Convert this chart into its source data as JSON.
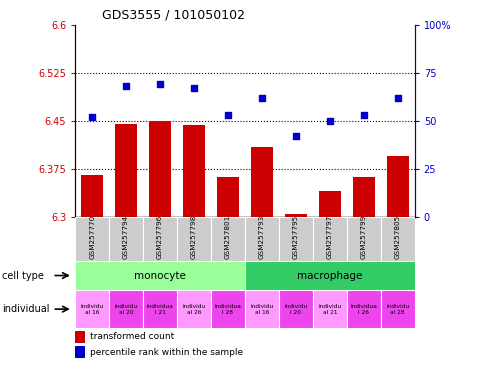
{
  "title": "GDS3555 / 101050102",
  "samples": [
    "GSM257770",
    "GSM257794",
    "GSM257796",
    "GSM257798",
    "GSM257801",
    "GSM257793",
    "GSM257795",
    "GSM257797",
    "GSM257799",
    "GSM257805"
  ],
  "bar_values": [
    6.365,
    6.445,
    6.45,
    6.443,
    6.362,
    6.41,
    6.305,
    6.34,
    6.362,
    6.395
  ],
  "scatter_values": [
    52,
    68,
    69,
    67,
    53,
    62,
    42,
    50,
    53,
    62
  ],
  "ymin": 6.3,
  "ymax": 6.6,
  "yticks": [
    6.3,
    6.375,
    6.45,
    6.525,
    6.6
  ],
  "y2min": 0,
  "y2max": 100,
  "y2ticks": [
    0,
    25,
    50,
    75,
    100
  ],
  "bar_color": "#cc0000",
  "scatter_color": "#0000cc",
  "bar_width": 0.65,
  "cell_type_monocyte_color": "#99ff99",
  "cell_type_macrophage_color": "#33cc66",
  "individual_colors_light": "#ff99ff",
  "individual_colors_dark": "#ee44ee",
  "legend_bar_label": "transformed count",
  "legend_scatter_label": "percentile rank within the sample",
  "left_color": "#cc0000",
  "right_color": "#0000cc",
  "sample_bg_color": "#cccccc",
  "individual_labels": [
    "individu\nal 16",
    "individu\nal 20",
    "individua\nl 21",
    "individu\nal 26",
    "individua\nl 28",
    "individu\nal 16",
    "individu\nl 20",
    "individu\nal 21",
    "individua\nl 26",
    "individu\nal 28"
  ],
  "individual_dark_indices": [
    1,
    2,
    4,
    6,
    8,
    9
  ]
}
